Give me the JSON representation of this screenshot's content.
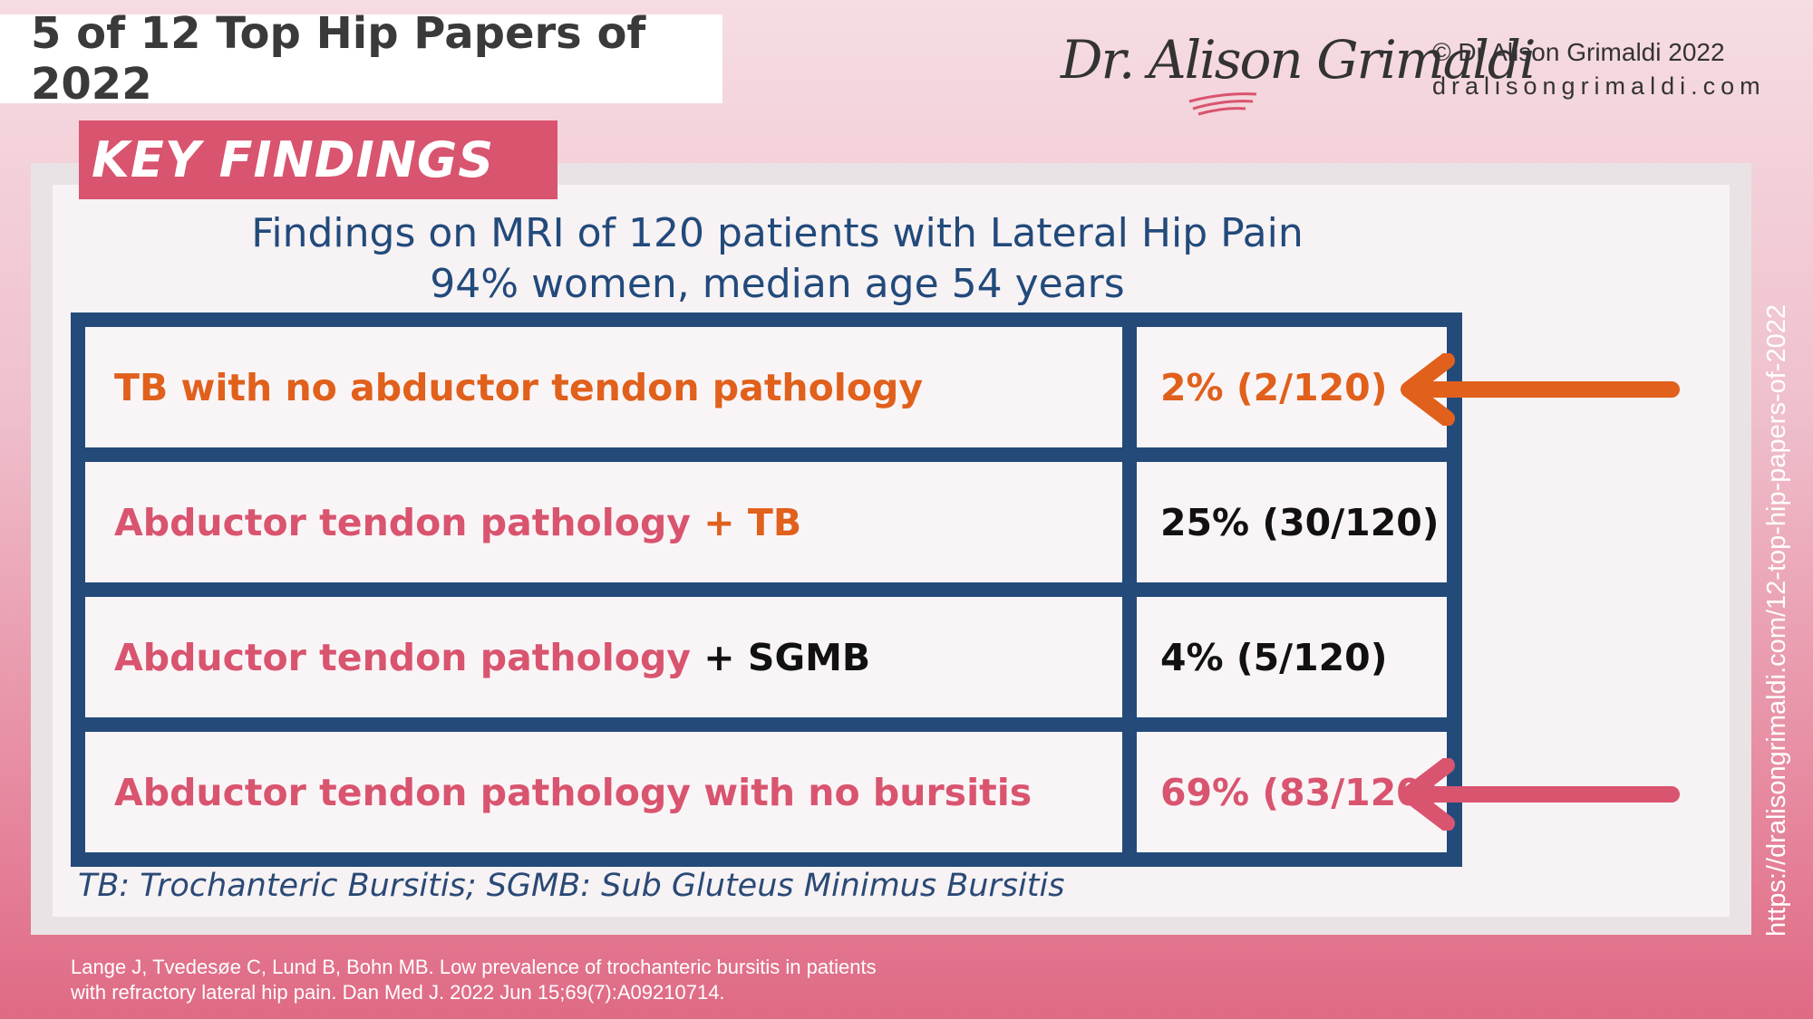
{
  "header": {
    "series_title": "5 of 12 Top Hip Papers of 2022",
    "signature_text": "Dr. Alison Grimaldi",
    "copyright": "© Dr Alison Grimaldi 2022",
    "website": "dralisongrimaldi.com"
  },
  "section_tag": "KEY FINDINGS",
  "title": {
    "line1": "Findings on MRI of 120 patients with Lateral Hip Pain",
    "line2": "94% women, median age 54 years"
  },
  "table": {
    "rows": [
      {
        "label_main": "TB with no abductor tendon pathology",
        "label_suffix": "",
        "value": "2% (2/120)"
      },
      {
        "label_main": "Abductor tendon pathology",
        "label_suffix": " + TB",
        "value": "25% (30/120)"
      },
      {
        "label_main": "Abductor tendon pathology",
        "label_suffix": " + SGMB",
        "value": "4% (5/120)"
      },
      {
        "label_main": "Abductor tendon pathology with no bursitis",
        "label_suffix": "",
        "value": "69% (83/120)"
      }
    ]
  },
  "footnote": "TB: Trochanteric Bursitis; SGMB: Sub Gluteus Minimus Bursitis",
  "citation": {
    "line1": "Lange J, Tvedesøe C, Lund B, Bohn MB. Low prevalence of trochanteric bursitis in patients",
    "line2": "with refractory lateral hip pain. Dan Med J. 2022 Jun 15;69(7):A09210714."
  },
  "side_url": "https://dralisongrimaldi.com/12-top-hip-papers-of-2022",
  "colors": {
    "accent_pink": "#d9546f",
    "accent_orange": "#e0601c",
    "table_border": "#244a7a",
    "title_blue": "#224a7b"
  }
}
